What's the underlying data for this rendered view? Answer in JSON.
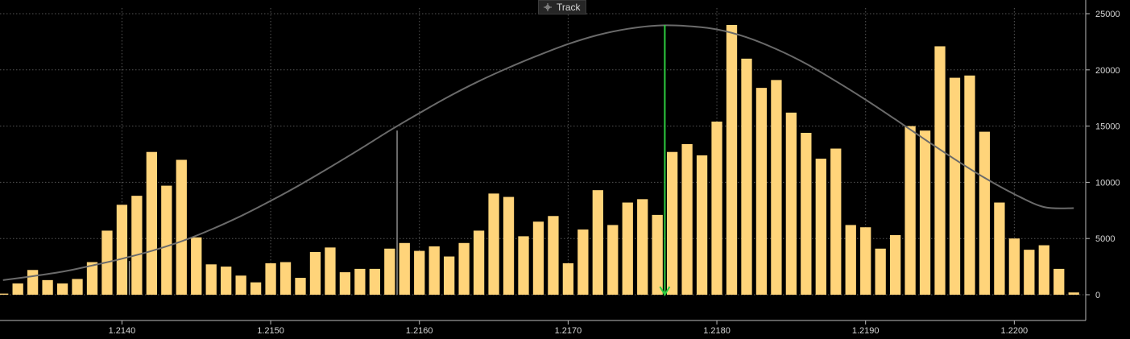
{
  "toolbar": {
    "track_label": "Track",
    "track_icon": "crosshair-icon"
  },
  "chart_data": {
    "type": "bar",
    "title": "",
    "xlabel": "",
    "ylabel": "",
    "xlim": [
      1.21318,
      1.22048
    ],
    "ylim": [
      0,
      25000
    ],
    "x_ticks": [
      "1.2140",
      "1.2150",
      "1.2160",
      "1.2170",
      "1.2180",
      "1.2190",
      "1.2200"
    ],
    "x_tick_values": [
      1.214,
      1.215,
      1.216,
      1.217,
      1.218,
      1.219,
      1.22
    ],
    "y_ticks": [
      "0",
      "5000",
      "10000",
      "15000",
      "20000",
      "25000"
    ],
    "y_tick_values": [
      0,
      5000,
      10000,
      15000,
      20000,
      25000
    ],
    "bar_step": 0.0001,
    "grid": true,
    "colors": {
      "bar": "#FFD47A",
      "curve": "#6a6a6a",
      "marker": "#2ecc40",
      "ref_line": "#8a8a8a",
      "grid": "#555555",
      "axis": "#bbbbbb"
    },
    "bars": {
      "x": [
        1.2132,
        1.2133,
        1.2134,
        1.2135,
        1.2136,
        1.2137,
        1.2138,
        1.2139,
        1.214,
        1.2141,
        1.2142,
        1.2143,
        1.2144,
        1.2145,
        1.2146,
        1.2147,
        1.2148,
        1.2149,
        1.215,
        1.2151,
        1.2152,
        1.2153,
        1.2154,
        1.2155,
        1.2156,
        1.2157,
        1.2158,
        1.2159,
        1.216,
        1.2161,
        1.2162,
        1.2163,
        1.2164,
        1.2165,
        1.2166,
        1.2167,
        1.2168,
        1.2169,
        1.217,
        1.2171,
        1.2172,
        1.2173,
        1.2174,
        1.2175,
        1.2176,
        1.2177,
        1.2178,
        1.2179,
        1.218,
        1.2181,
        1.2182,
        1.2183,
        1.2184,
        1.2185,
        1.2186,
        1.2187,
        1.2188,
        1.2189,
        1.219,
        1.2191,
        1.2192,
        1.2193,
        1.2194,
        1.2195,
        1.2196,
        1.2197,
        1.2198,
        1.2199,
        1.22,
        1.2201,
        1.2202,
        1.2203,
        1.2204
      ],
      "values": [
        100,
        1000,
        2200,
        1300,
        1000,
        1400,
        2900,
        5700,
        8000,
        8800,
        12700,
        9700,
        12000,
        5100,
        2700,
        2500,
        1700,
        1100,
        2800,
        2900,
        1500,
        3800,
        4200,
        2000,
        2300,
        2300,
        4100,
        4600,
        3900,
        4300,
        3400,
        4600,
        5700,
        9000,
        8700,
        5200,
        6500,
        7000,
        2800,
        5800,
        9300,
        6200,
        8200,
        8500,
        7100,
        12700,
        13400,
        12400,
        15400,
        24000,
        21000,
        18400,
        19100,
        16200,
        14400,
        12100,
        13000,
        6200,
        6000,
        4100,
        5300,
        15000,
        14600,
        22100,
        19300,
        19500,
        14500,
        8200,
        5000,
        4000,
        4400,
        2300,
        200
      ]
    },
    "curve": {
      "x": [
        1.2132,
        1.2134,
        1.2136,
        1.2138,
        1.214,
        1.2142,
        1.2144,
        1.2146,
        1.2148,
        1.215,
        1.2152,
        1.2154,
        1.2156,
        1.2158,
        1.216,
        1.2162,
        1.2164,
        1.2166,
        1.2168,
        1.217,
        1.2172,
        1.2174,
        1.2176,
        1.2178,
        1.218,
        1.2182,
        1.2184,
        1.2186,
        1.2188,
        1.219,
        1.2192,
        1.2194,
        1.2196,
        1.2198,
        1.22,
        1.2202,
        1.2204
      ],
      "values": [
        1300,
        1650,
        2050,
        2600,
        3200,
        3900,
        4750,
        5800,
        7000,
        8350,
        9800,
        11350,
        12950,
        14600,
        16150,
        17650,
        19000,
        20200,
        21300,
        22300,
        23100,
        23650,
        23950,
        23900,
        23600,
        22900,
        21850,
        20550,
        19000,
        17350,
        15600,
        13800,
        12050,
        10400,
        8950,
        7800,
        7700
      ]
    },
    "marker": {
      "x": 1.21765,
      "y_top": 24000,
      "y_bottom": 0,
      "style": "arrow-down"
    },
    "reference_lines": [
      {
        "x": 1.21405,
        "y_top": 3000
      },
      {
        "x": 1.21585,
        "y_top": 14600
      },
      {
        "x": 1.21948,
        "y_top": 13800
      }
    ]
  }
}
